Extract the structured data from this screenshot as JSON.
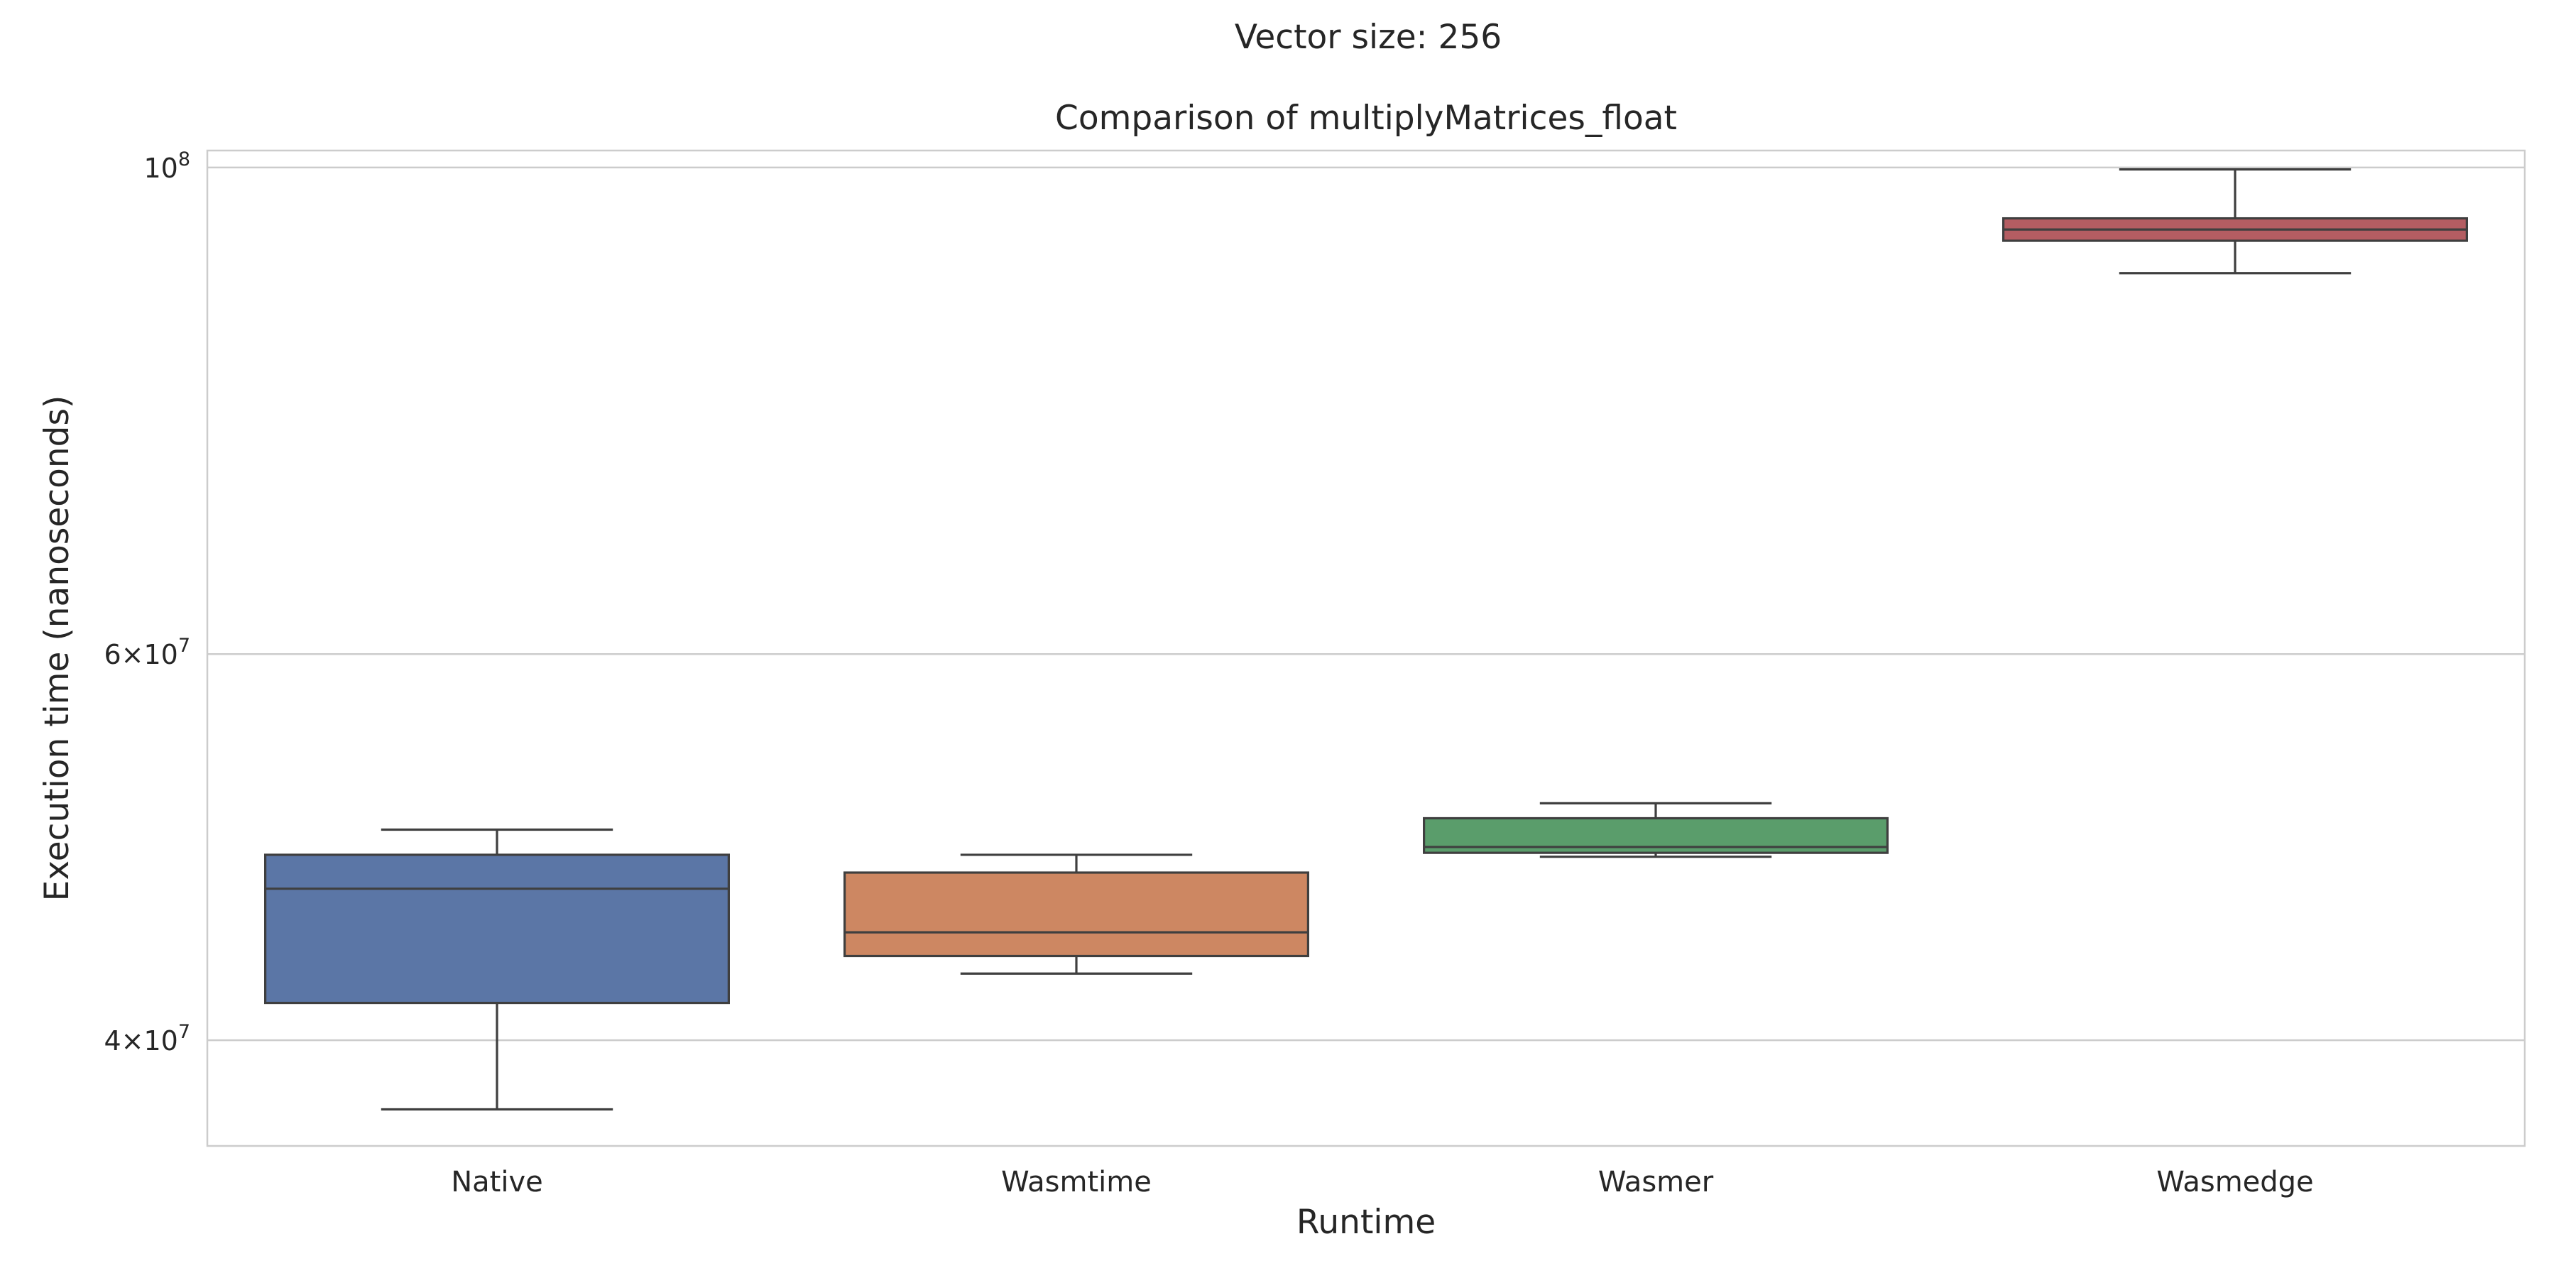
{
  "figure": {
    "suptitle": "Vector size: 256"
  },
  "chart_data": {
    "type": "box",
    "title": "Comparison of multiplyMatrices_float",
    "xlabel": "Runtime",
    "ylabel": "Execution time (nanoseconds)",
    "yscale": "log",
    "ylim": [
      35800000,
      101800000
    ],
    "grid": "horizontal major gridlines",
    "yticks": [
      {
        "value": 40000000,
        "base": "4",
        "exp": "7"
      },
      {
        "value": 60000000,
        "base": "6",
        "exp": "7"
      },
      {
        "value": 100000000,
        "base": "10",
        "exp": "8"
      }
    ],
    "categories": [
      "Native",
      "Wasmtime",
      "Wasmer",
      "Wasmedge"
    ],
    "colors": [
      "#5b76a6",
      "#cd8762",
      "#5a9d6b",
      "#b45d62"
    ],
    "boxes": [
      {
        "label": "Native",
        "whisker_low": 37200000,
        "q1": 41600000,
        "median": 46900000,
        "q3": 48600000,
        "whisker_high": 49900000
      },
      {
        "label": "Wasmtime",
        "whisker_low": 42900000,
        "q1": 43700000,
        "median": 44800000,
        "q3": 47700000,
        "whisker_high": 48600000
      },
      {
        "label": "Wasmer",
        "whisker_low": 48500000,
        "q1": 48700000,
        "median": 49000000,
        "q3": 50500000,
        "whisker_high": 51300000
      },
      {
        "label": "Wasmedge",
        "whisker_low": 89500000,
        "q1": 92600000,
        "median": 93700000,
        "q3": 94800000,
        "whisker_high": 99800000
      }
    ]
  }
}
